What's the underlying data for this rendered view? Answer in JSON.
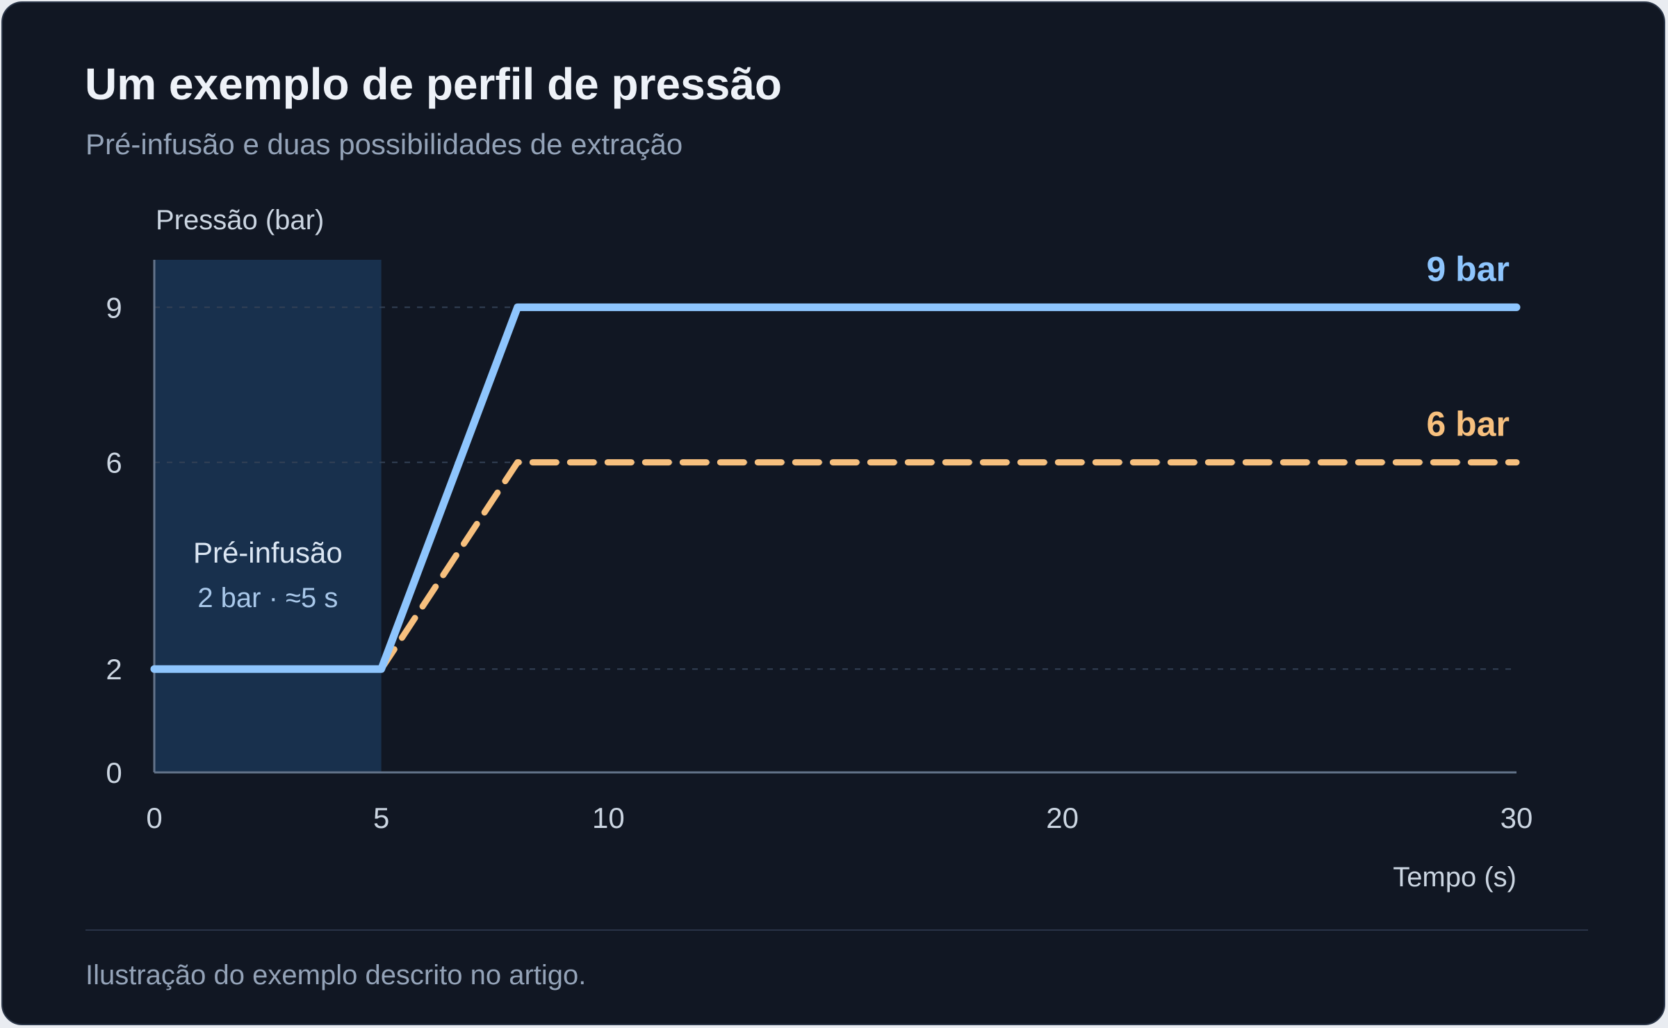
{
  "header": {
    "title": "Um exemplo de perfil de pressão",
    "subtitle": "Pré-infusão e duas possibilidades de extração"
  },
  "footer": {
    "note": "Ilustração do exemplo descrito no artigo."
  },
  "colors": {
    "background": "#111723",
    "series_9bar": "#8ec5fd",
    "series_6bar": "#f7c07e",
    "preinfusion_band": "#18304d",
    "axis": "#64748b",
    "grid": "#334155",
    "tick_text": "#cbd5e1"
  },
  "chart_data": {
    "type": "line",
    "ylabel": "Pressão (bar)",
    "xlabel": "Tempo (s)",
    "xlim": [
      0,
      30
    ],
    "ylim": [
      0,
      10
    ],
    "x_ticks": [
      0,
      5,
      10,
      20,
      30
    ],
    "y_ticks": [
      0,
      2,
      6,
      9
    ],
    "grid": "horizontal dashed at 2, 6, 9",
    "series": [
      {
        "name": "9 bar",
        "style": "solid",
        "color": "#8ec5fd",
        "points": [
          [
            0,
            2
          ],
          [
            5,
            2
          ],
          [
            8,
            9
          ],
          [
            30,
            9
          ]
        ]
      },
      {
        "name": "6 bar",
        "style": "dashed",
        "color": "#f7c07e",
        "points": [
          [
            5,
            2
          ],
          [
            8,
            6
          ],
          [
            30,
            6
          ]
        ]
      }
    ],
    "regions": [
      {
        "label": "Pré-infusão",
        "sublabel": "2 bar · ≈5 s",
        "x_start": 0,
        "x_end": 5
      }
    ]
  }
}
